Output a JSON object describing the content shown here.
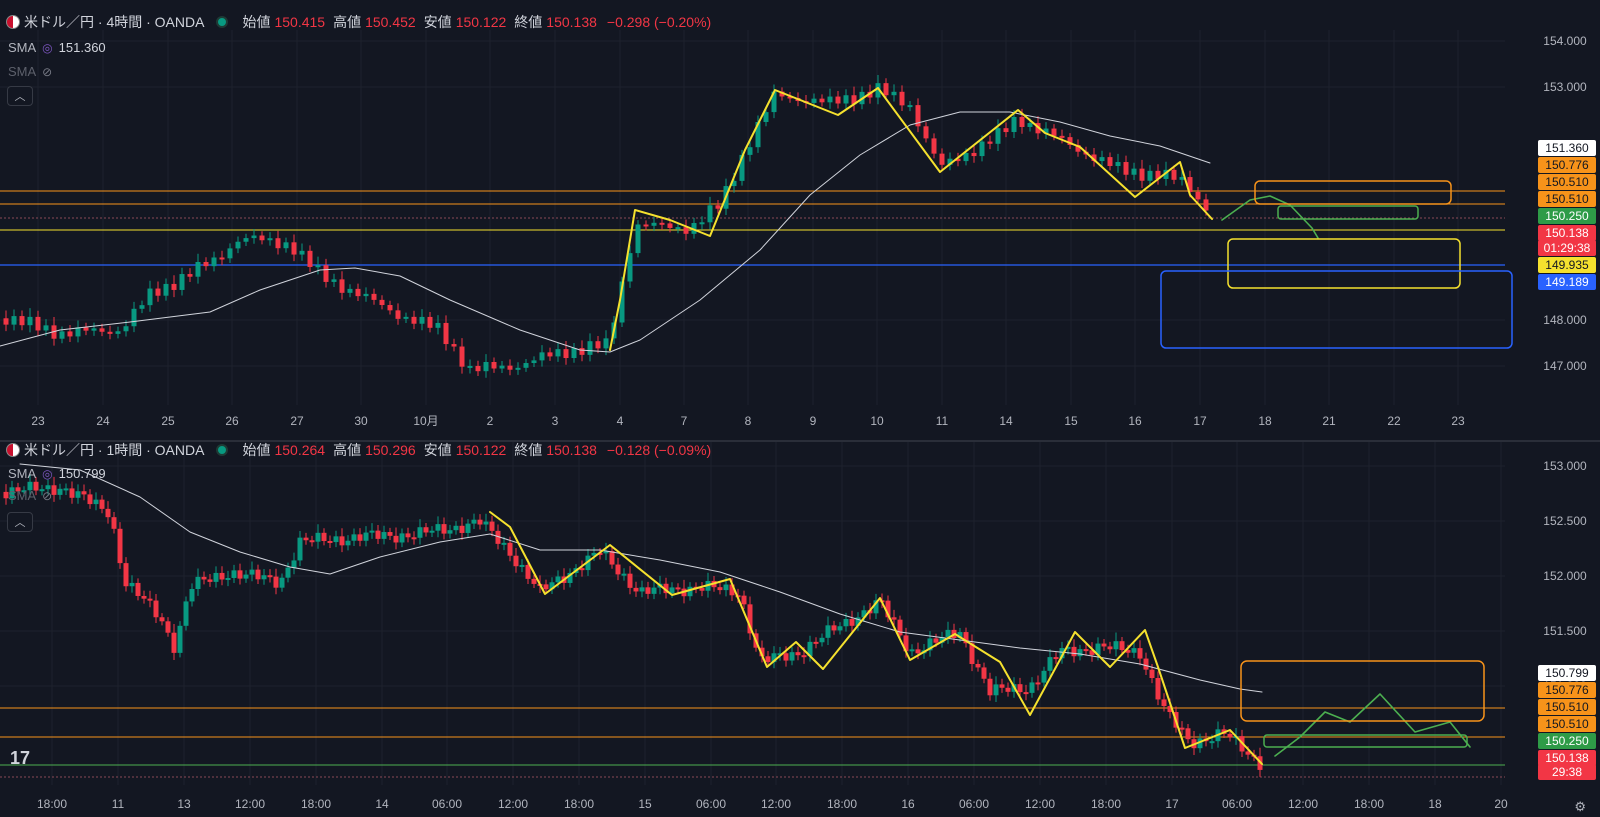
{
  "pane1": {
    "symbol": "米ドル／円 · 4時間 · OANDA",
    "open_label": "始値",
    "open": "150.415",
    "high_label": "高値",
    "high": "150.452",
    "low_label": "安値",
    "low": "150.122",
    "close_label": "終値",
    "close": "150.138",
    "change": "−0.298 (−0.20%)",
    "sma1_label": "SMA",
    "sma1_value": "151.360",
    "sma2_label": "SMA",
    "collapse_icon": "chevron-up-icon",
    "price_ticks": [
      "154.000",
      "153.000",
      "148.000",
      "147.000"
    ],
    "price_labels": [
      {
        "text": "151.360",
        "bg": "#ffffff",
        "fg": "#131722"
      },
      {
        "text": "150.776",
        "bg": "#f7931a",
        "fg": "#131722"
      },
      {
        "text": "150.510",
        "bg": "#f7931a",
        "fg": "#131722"
      },
      {
        "text": "150.510",
        "bg": "#f7931a",
        "fg": "#131722"
      },
      {
        "text": "150.250",
        "bg": "#2e9b47",
        "fg": "#ffffff"
      },
      {
        "text": "150.138",
        "bg": "#f23645",
        "fg": "#ffffff"
      },
      {
        "text": "01:29:38",
        "bg": "#f23645",
        "fg": "#ffffff"
      },
      {
        "text": "149.935",
        "bg": "#f5e12e",
        "fg": "#131722"
      },
      {
        "text": "149.189",
        "bg": "#2962ff",
        "fg": "#ffffff"
      }
    ],
    "time_ticks": [
      "23",
      "24",
      "25",
      "26",
      "27",
      "30",
      "10月",
      "2",
      "3",
      "4",
      "7",
      "8",
      "9",
      "10",
      "11",
      "14",
      "15",
      "16",
      "17",
      "18",
      "21",
      "22",
      "23"
    ]
  },
  "pane2": {
    "symbol": "米ドル／円 · 1時間 · OANDA",
    "open_label": "始値",
    "open": "150.264",
    "high_label": "高値",
    "high": "150.296",
    "low_label": "安値",
    "low": "150.122",
    "close_label": "終値",
    "close": "150.138",
    "change": "−0.128 (−0.09%)",
    "sma1_label": "SMA",
    "sma1_value": "150.799",
    "sma2_label": "SMA",
    "price_ticks": [
      "153.000",
      "152.500",
      "152.000",
      "151.500",
      "151.000"
    ],
    "price_labels": [
      {
        "text": "150.799",
        "bg": "#ffffff",
        "fg": "#131722"
      },
      {
        "text": "150.776",
        "bg": "#f7931a",
        "fg": "#131722"
      },
      {
        "text": "150.510",
        "bg": "#f7931a",
        "fg": "#131722"
      },
      {
        "text": "150.510",
        "bg": "#f7931a",
        "fg": "#131722"
      },
      {
        "text": "150.250",
        "bg": "#2e9b47",
        "fg": "#ffffff"
      },
      {
        "text": "150.138",
        "bg": "#f23645",
        "fg": "#ffffff"
      },
      {
        "text": "29:38",
        "bg": "#f23645",
        "fg": "#ffffff"
      }
    ],
    "time_ticks": [
      "18:00",
      "11",
      "13",
      "12:00",
      "18:00",
      "14",
      "06:00",
      "12:00",
      "18:00",
      "15",
      "06:00",
      "12:00",
      "18:00",
      "16",
      "06:00",
      "12:00",
      "18:00",
      "17",
      "06:00",
      "12:00",
      "18:00",
      "18",
      "20"
    ]
  },
  "brand": "17",
  "colors": {
    "bg": "#131722",
    "up": "#089981",
    "down": "#f23645",
    "orange": "#f7931a",
    "yellow": "#f5e12e",
    "green": "#2e9b47",
    "blue": "#2962ff",
    "sma": "#d1d4dc"
  }
}
